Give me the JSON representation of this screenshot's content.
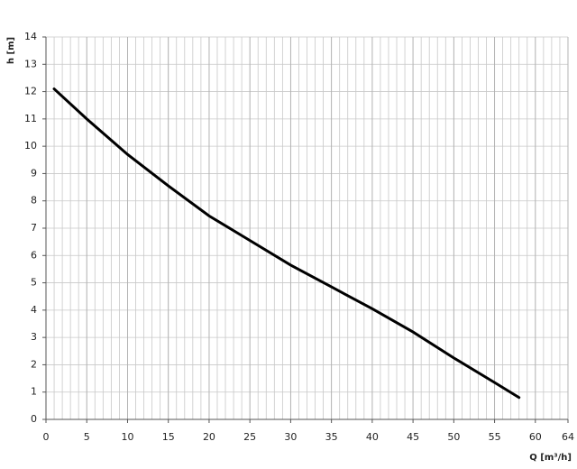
{
  "chart_data": {
    "type": "line",
    "x_label": "Q [m³/h]",
    "y_label": "h [m]",
    "x": [
      1,
      5,
      10,
      15,
      20,
      25,
      30,
      35,
      40,
      45,
      50,
      55,
      58
    ],
    "series": [
      {
        "color": "#000000",
        "values": [
          12.1,
          11.0,
          9.7,
          8.55,
          7.45,
          6.55,
          5.65,
          4.85,
          4.05,
          3.2,
          2.25,
          1.35,
          0.8
        ]
      }
    ],
    "xlim": [
      0,
      64
    ],
    "xticks": [
      0,
      5,
      10,
      15,
      20,
      25,
      30,
      35,
      40,
      45,
      50,
      55,
      60,
      64
    ],
    "ylim": [
      0,
      14
    ],
    "yticks": [
      0,
      1,
      2,
      3,
      4,
      5,
      6,
      7,
      8,
      9,
      10,
      11,
      12,
      13,
      14
    ],
    "grid": true,
    "x_grid_step": 1
  }
}
